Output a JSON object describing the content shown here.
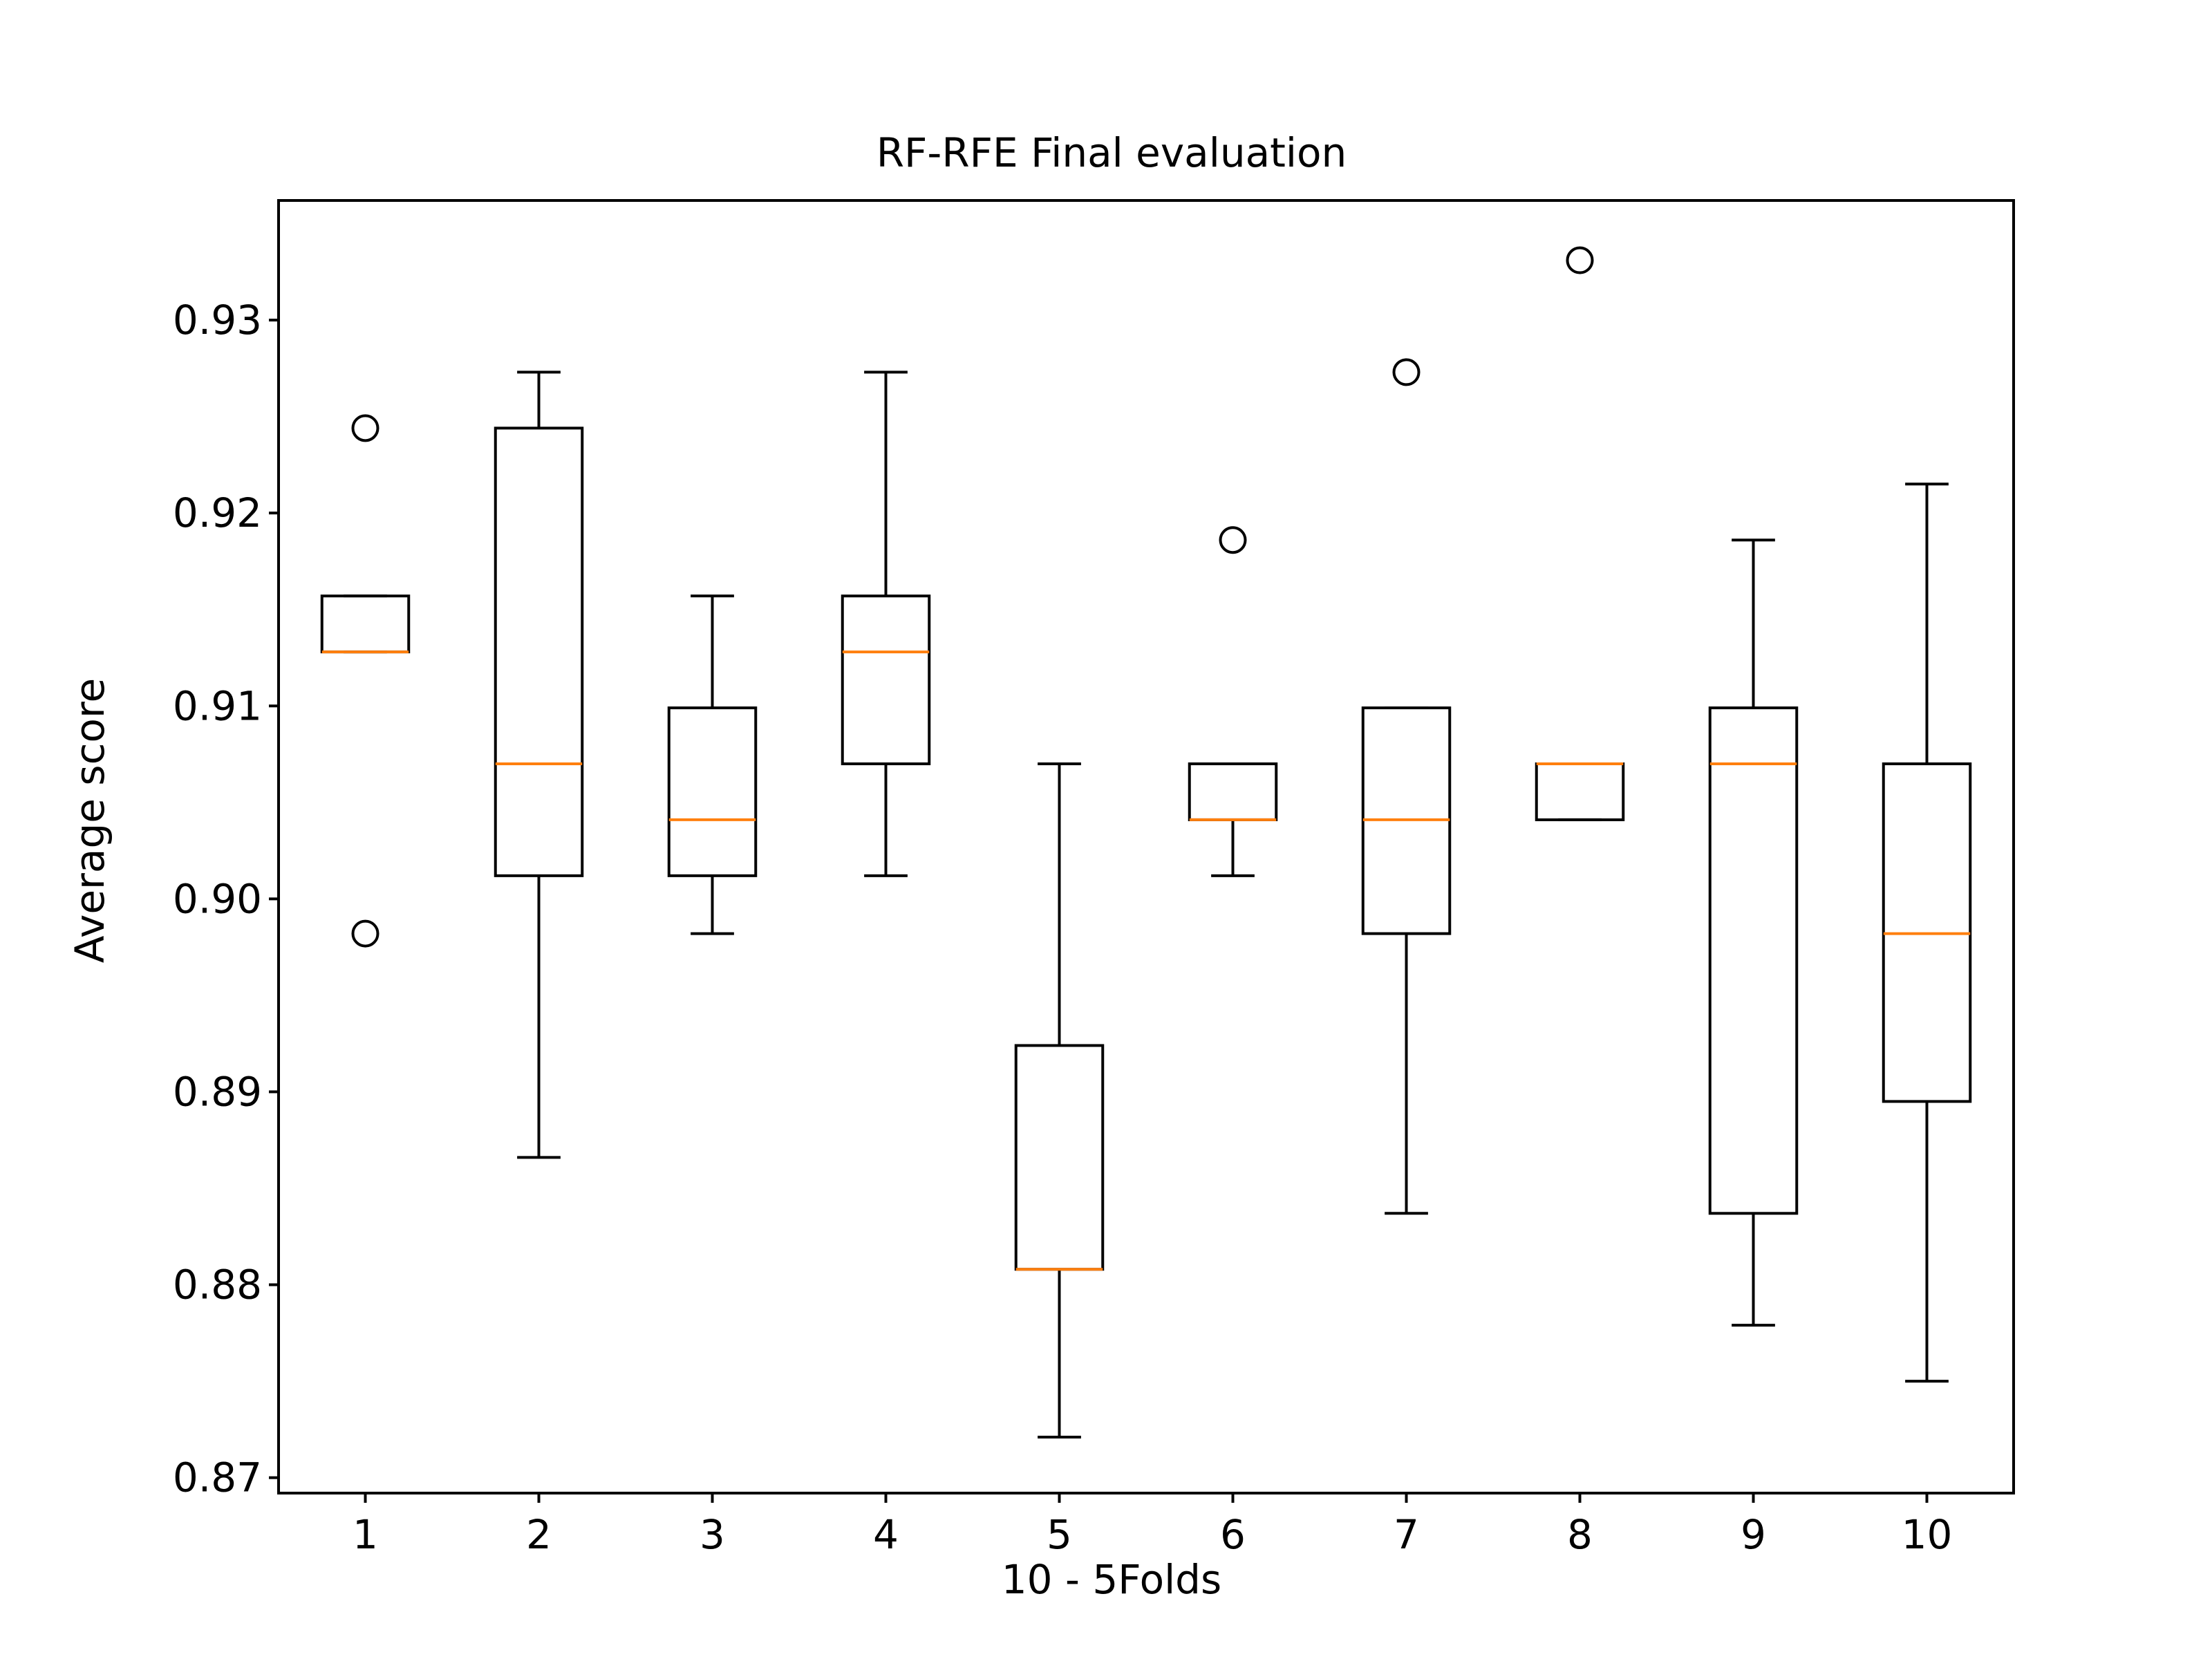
{
  "chart_data": {
    "type": "box",
    "title": "RF-RFE Final evaluation",
    "xlabel": "10 - 5Folds",
    "ylabel": "Average score",
    "ylim": [
      0.8692,
      0.9362
    ],
    "yticks": [
      0.87,
      0.88,
      0.89,
      0.9,
      0.91,
      0.92,
      0.93
    ],
    "ytick_labels": [
      "0.87",
      "0.88",
      "0.89",
      "0.90",
      "0.91",
      "0.92",
      "0.93"
    ],
    "categories": [
      "1",
      "2",
      "3",
      "4",
      "5",
      "6",
      "7",
      "8",
      "9",
      "10"
    ],
    "grid": false,
    "legend": "none",
    "box_color": "#000000",
    "median_color": "#ff7f0e",
    "boxes": [
      {
        "label": "1",
        "whisker_low": 0.9128,
        "q1": 0.9128,
        "median": 0.9128,
        "q3": 0.9157,
        "whisker_high": 0.9157,
        "fliers": [
          0.9244,
          0.8982
        ]
      },
      {
        "label": "2",
        "whisker_low": 0.8866,
        "q1": 0.9012,
        "median": 0.907,
        "q3": 0.9244,
        "whisker_high": 0.9273,
        "fliers": []
      },
      {
        "label": "3",
        "whisker_low": 0.8982,
        "q1": 0.9012,
        "median": 0.9041,
        "q3": 0.9099,
        "whisker_high": 0.9157,
        "fliers": []
      },
      {
        "label": "4",
        "whisker_low": 0.9012,
        "q1": 0.907,
        "median": 0.9128,
        "q3": 0.9157,
        "whisker_high": 0.9273,
        "fliers": []
      },
      {
        "label": "5",
        "whisker_low": 0.8721,
        "q1": 0.8808,
        "median": 0.8808,
        "q3": 0.8924,
        "whisker_high": 0.907,
        "fliers": []
      },
      {
        "label": "6",
        "whisker_low": 0.9012,
        "q1": 0.9041,
        "median": 0.9041,
        "q3": 0.907,
        "whisker_high": 0.907,
        "fliers": [
          0.9186
        ]
      },
      {
        "label": "7",
        "whisker_low": 0.8837,
        "q1": 0.8982,
        "median": 0.9041,
        "q3": 0.9099,
        "whisker_high": 0.9099,
        "fliers": [
          0.9273
        ]
      },
      {
        "label": "8",
        "whisker_low": 0.9041,
        "q1": 0.9041,
        "median": 0.907,
        "q3": 0.907,
        "whisker_high": 0.907,
        "fliers": [
          0.9331
        ]
      },
      {
        "label": "9",
        "whisker_low": 0.8779,
        "q1": 0.8837,
        "median": 0.907,
        "q3": 0.9099,
        "whisker_high": 0.9186,
        "fliers": []
      },
      {
        "label": "10",
        "whisker_low": 0.875,
        "q1": 0.8895,
        "median": 0.8982,
        "q3": 0.907,
        "whisker_high": 0.9215,
        "fliers": []
      }
    ]
  }
}
